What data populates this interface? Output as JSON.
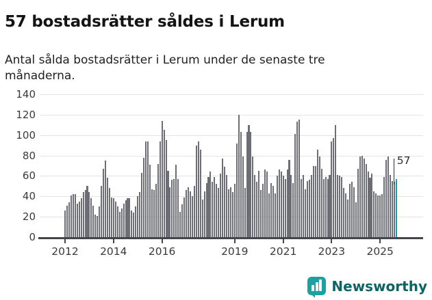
{
  "header": {
    "title": "57 bostadsrätter såldes i Lerum",
    "subtitle": "Antal sålda bostadsrätter i Lerum under de senaste tre månaderna."
  },
  "chart_data": {
    "type": "bar",
    "title": "57 bostadsrätter såldes i Lerum",
    "subtitle": "Antal sålda bostadsrätter i Lerum under de senaste tre månaderna.",
    "frequency": "monthly",
    "start": "2012-01",
    "ylim": [
      0,
      140
    ],
    "grid": "horizontal",
    "y_ticks": [
      0,
      20,
      40,
      60,
      80,
      100,
      120,
      140
    ],
    "x_ticks": [
      {
        "label": "2012",
        "month_index": 0
      },
      {
        "label": "2014",
        "month_index": 24
      },
      {
        "label": "2016",
        "month_index": 48
      },
      {
        "label": "2019",
        "month_index": 84
      },
      {
        "label": "2021",
        "month_index": 108
      },
      {
        "label": "2023",
        "month_index": 132
      },
      {
        "label": "2025",
        "month_index": 156
      }
    ],
    "values": [
      26,
      31,
      34,
      41,
      42,
      42,
      33,
      35,
      38,
      44,
      46,
      50,
      44,
      38,
      31,
      22,
      21,
      30,
      50,
      67,
      75,
      58,
      48,
      39,
      38,
      35,
      30,
      25,
      28,
      33,
      36,
      38,
      38,
      26,
      24,
      30,
      40,
      44,
      63,
      78,
      94,
      94,
      71,
      47,
      46,
      52,
      72,
      94,
      114,
      105,
      95,
      65,
      49,
      56,
      57,
      71,
      57,
      25,
      32,
      39,
      46,
      49,
      45,
      40,
      50,
      90,
      94,
      86,
      37,
      45,
      53,
      59,
      64,
      54,
      59,
      52,
      48,
      62,
      77,
      69,
      61,
      47,
      49,
      44,
      52,
      92,
      120,
      103,
      79,
      48,
      103,
      110,
      103,
      79,
      61,
      54,
      65,
      46,
      52,
      66,
      64,
      43,
      53,
      50,
      43,
      60,
      66,
      64,
      60,
      57,
      66,
      76,
      61,
      53,
      101,
      113,
      115,
      57,
      61,
      47,
      55,
      56,
      61,
      70,
      70,
      86,
      79,
      67,
      57,
      59,
      57,
      61,
      94,
      97,
      110,
      61,
      60,
      59,
      48,
      43,
      37,
      52,
      54,
      49,
      34,
      67,
      79,
      80,
      77,
      72,
      64,
      58,
      62,
      45,
      43,
      41,
      41,
      42,
      59,
      76,
      79,
      61,
      55,
      54,
      57
    ],
    "bar_color": "#6d6d75",
    "highlight": {
      "last_bar": true,
      "value": 57,
      "label": "57",
      "color": "#18a0a0"
    }
  },
  "branding": {
    "name": "Newsworthy",
    "icon_color": "#1ba1a1",
    "text_color": "#0c6565"
  }
}
